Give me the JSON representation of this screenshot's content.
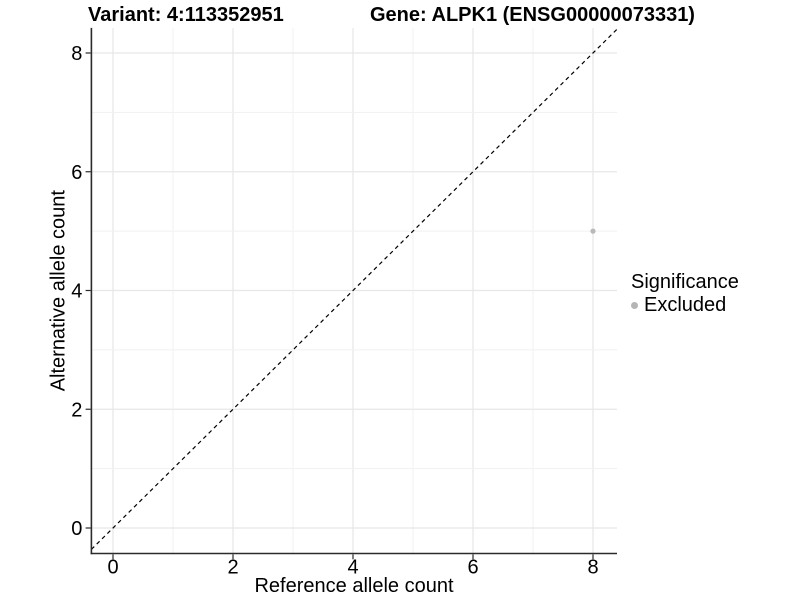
{
  "header": {
    "title_variant": "Variant: 4:113352951",
    "title_gene": "Gene: ALPK1 (ENSG00000073331)"
  },
  "chart_data": {
    "type": "scatter",
    "title_variant": "Variant: 4:113352951",
    "title_gene": "Gene: ALPK1 (ENSG00000073331)",
    "xlabel": "Reference allele count",
    "ylabel": "Alternative allele count",
    "x_ticks": [
      0,
      2,
      4,
      6,
      8
    ],
    "y_ticks": [
      0,
      2,
      4,
      6,
      8
    ],
    "xlim": [
      -0.36,
      8.4
    ],
    "ylim": [
      -0.43,
      8.42
    ],
    "grid": {
      "on": true,
      "major_every": 2,
      "minor_every": 1,
      "major_color": "#e7e7e7",
      "minor_color": "#f1f1f1"
    },
    "identity_line": {
      "equation": "y = x",
      "style": "dashed",
      "color": "#000000",
      "from": [
        -0.36,
        -0.36
      ],
      "to": [
        8.4,
        8.4
      ]
    },
    "points": [
      {
        "x": 8,
        "y": 5,
        "series": "Excluded",
        "color": "#b9b9b9",
        "radius": 2.6
      }
    ],
    "legend": {
      "position": "right",
      "title": "Significance",
      "items": [
        {
          "label": "Excluded",
          "color": "#b5b5b5"
        }
      ]
    },
    "colors": {
      "axis_line": "#2b2b2b",
      "tick_mark": "#2b2b2b",
      "text": "#000000",
      "background": "#ffffff"
    }
  }
}
